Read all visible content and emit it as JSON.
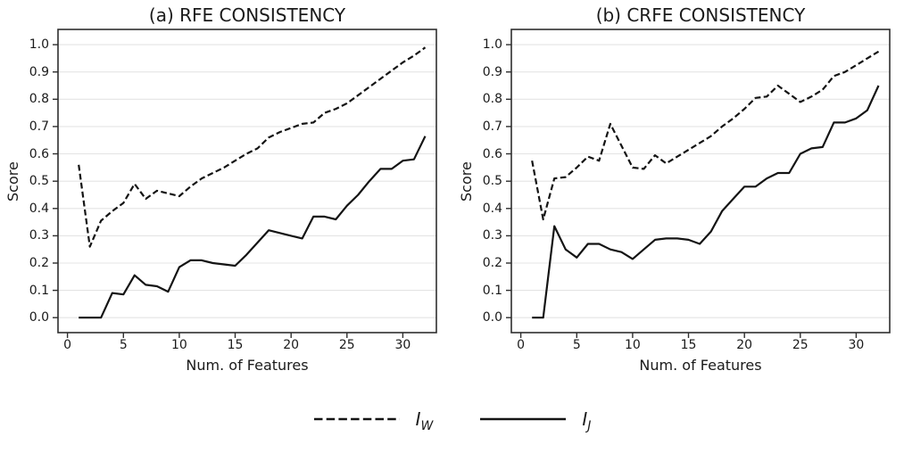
{
  "figure": {
    "background": "#ffffff",
    "line_color": "#141414",
    "grid_color": "#e4e4e4",
    "spine_color": "#2e2e2e",
    "tick_color": "#2e2e2e",
    "text_color": "#1a1a1a"
  },
  "legend": {
    "items": [
      {
        "id": "iw",
        "style": "dashed",
        "label_main": "I",
        "label_sub": "W"
      },
      {
        "id": "ij",
        "style": "solid",
        "label_main": "I",
        "label_sub": "J"
      }
    ]
  },
  "chart_data": [
    {
      "type": "line",
      "title": "(a) RFE CONSISTENCY",
      "xlabel": "Num. of Features",
      "ylabel": "Score",
      "grid": "horizontal",
      "legend_position": "below-figure",
      "xlim": [
        -0.85,
        33.0
      ],
      "ylim": [
        -0.055,
        1.056
      ],
      "x_ticks": [
        0,
        5,
        10,
        15,
        20,
        25,
        30
      ],
      "y_ticks": [
        0.0,
        0.1,
        0.2,
        0.3,
        0.4,
        0.5,
        0.6,
        0.7,
        0.8,
        0.9,
        1.0
      ],
      "x": [
        1,
        2,
        3,
        4,
        5,
        6,
        7,
        8,
        9,
        10,
        11,
        12,
        13,
        14,
        15,
        16,
        17,
        18,
        19,
        20,
        21,
        22,
        23,
        24,
        25,
        26,
        27,
        28,
        29,
        30,
        31,
        32
      ],
      "series": [
        {
          "name": "I_W",
          "style": "dashed",
          "values": [
            0.56,
            0.26,
            0.355,
            0.39,
            0.42,
            0.49,
            0.435,
            0.465,
            0.455,
            0.445,
            0.48,
            0.51,
            0.53,
            0.55,
            0.575,
            0.6,
            0.62,
            0.66,
            0.68,
            0.695,
            0.71,
            0.715,
            0.75,
            0.765,
            0.785,
            0.815,
            0.845,
            0.875,
            0.905,
            0.935,
            0.96,
            0.99
          ]
        },
        {
          "name": "I_J",
          "style": "solid",
          "values": [
            0.0,
            0.0,
            0.0,
            0.09,
            0.085,
            0.155,
            0.12,
            0.115,
            0.095,
            0.185,
            0.21,
            0.21,
            0.2,
            0.195,
            0.19,
            0.23,
            0.275,
            0.32,
            0.31,
            0.3,
            0.29,
            0.37,
            0.37,
            0.36,
            0.41,
            0.45,
            0.5,
            0.545,
            0.545,
            0.575,
            0.58,
            0.665
          ]
        }
      ]
    },
    {
      "type": "line",
      "title": "(b) CRFE CONSISTENCY",
      "xlabel": "Num. of Features",
      "ylabel": "Score",
      "grid": "horizontal",
      "legend_position": "below-figure",
      "xlim": [
        -0.85,
        33.0
      ],
      "ylim": [
        -0.055,
        1.056
      ],
      "x_ticks": [
        0,
        5,
        10,
        15,
        20,
        25,
        30
      ],
      "y_ticks": [
        0.0,
        0.1,
        0.2,
        0.3,
        0.4,
        0.5,
        0.6,
        0.7,
        0.8,
        0.9,
        1.0
      ],
      "x": [
        1,
        2,
        3,
        4,
        5,
        6,
        7,
        8,
        9,
        10,
        11,
        12,
        13,
        14,
        15,
        16,
        17,
        18,
        19,
        20,
        21,
        22,
        23,
        24,
        25,
        26,
        27,
        28,
        29,
        30,
        31,
        32
      ],
      "series": [
        {
          "name": "I_W",
          "style": "dashed",
          "values": [
            0.575,
            0.36,
            0.51,
            0.515,
            0.55,
            0.59,
            0.575,
            0.71,
            0.63,
            0.55,
            0.545,
            0.595,
            0.565,
            0.59,
            0.615,
            0.64,
            0.665,
            0.7,
            0.73,
            0.765,
            0.805,
            0.81,
            0.85,
            0.82,
            0.79,
            0.81,
            0.835,
            0.885,
            0.9,
            0.925,
            0.95,
            0.975
          ]
        },
        {
          "name": "I_J",
          "style": "solid",
          "values": [
            0.0,
            0.0,
            0.335,
            0.25,
            0.22,
            0.27,
            0.27,
            0.25,
            0.24,
            0.215,
            0.25,
            0.285,
            0.29,
            0.29,
            0.285,
            0.27,
            0.315,
            0.39,
            0.435,
            0.48,
            0.48,
            0.51,
            0.53,
            0.53,
            0.6,
            0.62,
            0.625,
            0.715,
            0.715,
            0.73,
            0.76,
            0.85
          ]
        }
      ]
    }
  ]
}
